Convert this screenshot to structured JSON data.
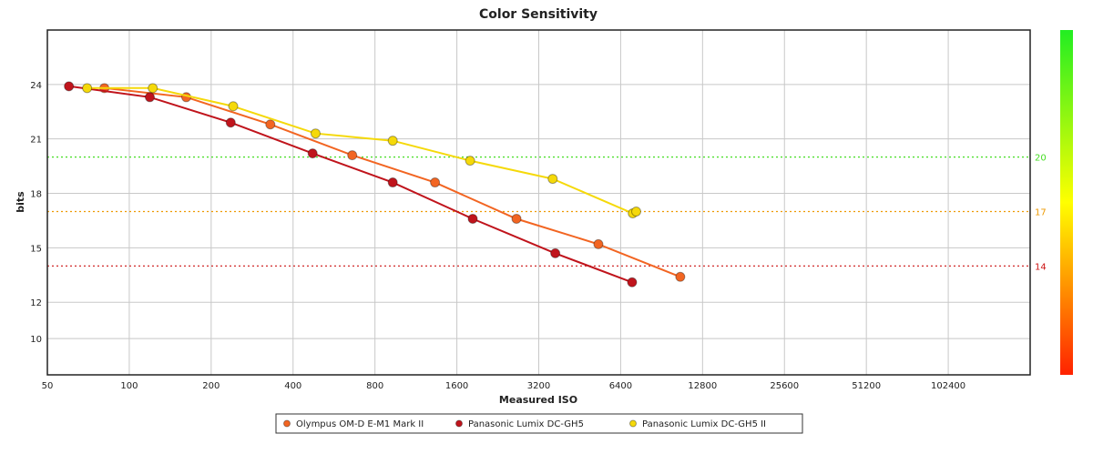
{
  "chart_data": {
    "type": "line",
    "title": "Color Sensitivity",
    "xlabel": "Measured ISO",
    "ylabel": "bits",
    "x_scale": "log2",
    "xlim": [
      50,
      204800
    ],
    "ylim": [
      8,
      27
    ],
    "x_ticks": [
      "50",
      "100",
      "200",
      "400",
      "800",
      "1600",
      "3200",
      "6400",
      "12800",
      "25600",
      "51200",
      "102400"
    ],
    "y_ticks": [
      "10",
      "12",
      "15",
      "18",
      "21",
      "24"
    ],
    "grid": true,
    "legend_position": "bottom",
    "reference_lines": [
      {
        "value": 20,
        "label": "20",
        "color": "#44dd22"
      },
      {
        "value": 17,
        "label": "17",
        "color": "#ee9900"
      },
      {
        "value": 14,
        "label": "14",
        "color": "#cc1111"
      }
    ],
    "color_scale": {
      "min_color": "#ff2200",
      "mid_color": "#ffff00",
      "max_color": "#22ee22"
    },
    "series": [
      {
        "name": "Olympus OM-D E-M1 Mark II",
        "color": "#f26522",
        "points": [
          {
            "x": 81,
            "y": 23.8
          },
          {
            "x": 162,
            "y": 23.3
          },
          {
            "x": 330,
            "y": 21.8
          },
          {
            "x": 660,
            "y": 20.1
          },
          {
            "x": 1330,
            "y": 18.6
          },
          {
            "x": 2650,
            "y": 16.6
          },
          {
            "x": 5300,
            "y": 15.2
          },
          {
            "x": 10600,
            "y": 13.4
          }
        ]
      },
      {
        "name": "Panasonic Lumix DC-GH5",
        "color": "#c0141c",
        "points": [
          {
            "x": 60,
            "y": 23.9
          },
          {
            "x": 119,
            "y": 23.3
          },
          {
            "x": 236,
            "y": 21.9
          },
          {
            "x": 472,
            "y": 20.2
          },
          {
            "x": 930,
            "y": 18.6
          },
          {
            "x": 1830,
            "y": 16.6
          },
          {
            "x": 3680,
            "y": 14.7
          },
          {
            "x": 7050,
            "y": 13.1
          }
        ]
      },
      {
        "name": "Panasonic Lumix DC-GH5 II",
        "color": "#f5d90a",
        "points": [
          {
            "x": 70,
            "y": 23.8
          },
          {
            "x": 122,
            "y": 23.8
          },
          {
            "x": 241,
            "y": 22.8
          },
          {
            "x": 484,
            "y": 21.3
          },
          {
            "x": 930,
            "y": 20.9
          },
          {
            "x": 1790,
            "y": 19.8
          },
          {
            "x": 3600,
            "y": 18.8
          },
          {
            "x": 7090,
            "y": 16.9
          },
          {
            "x": 7300,
            "y": 17.0
          }
        ]
      }
    ]
  }
}
